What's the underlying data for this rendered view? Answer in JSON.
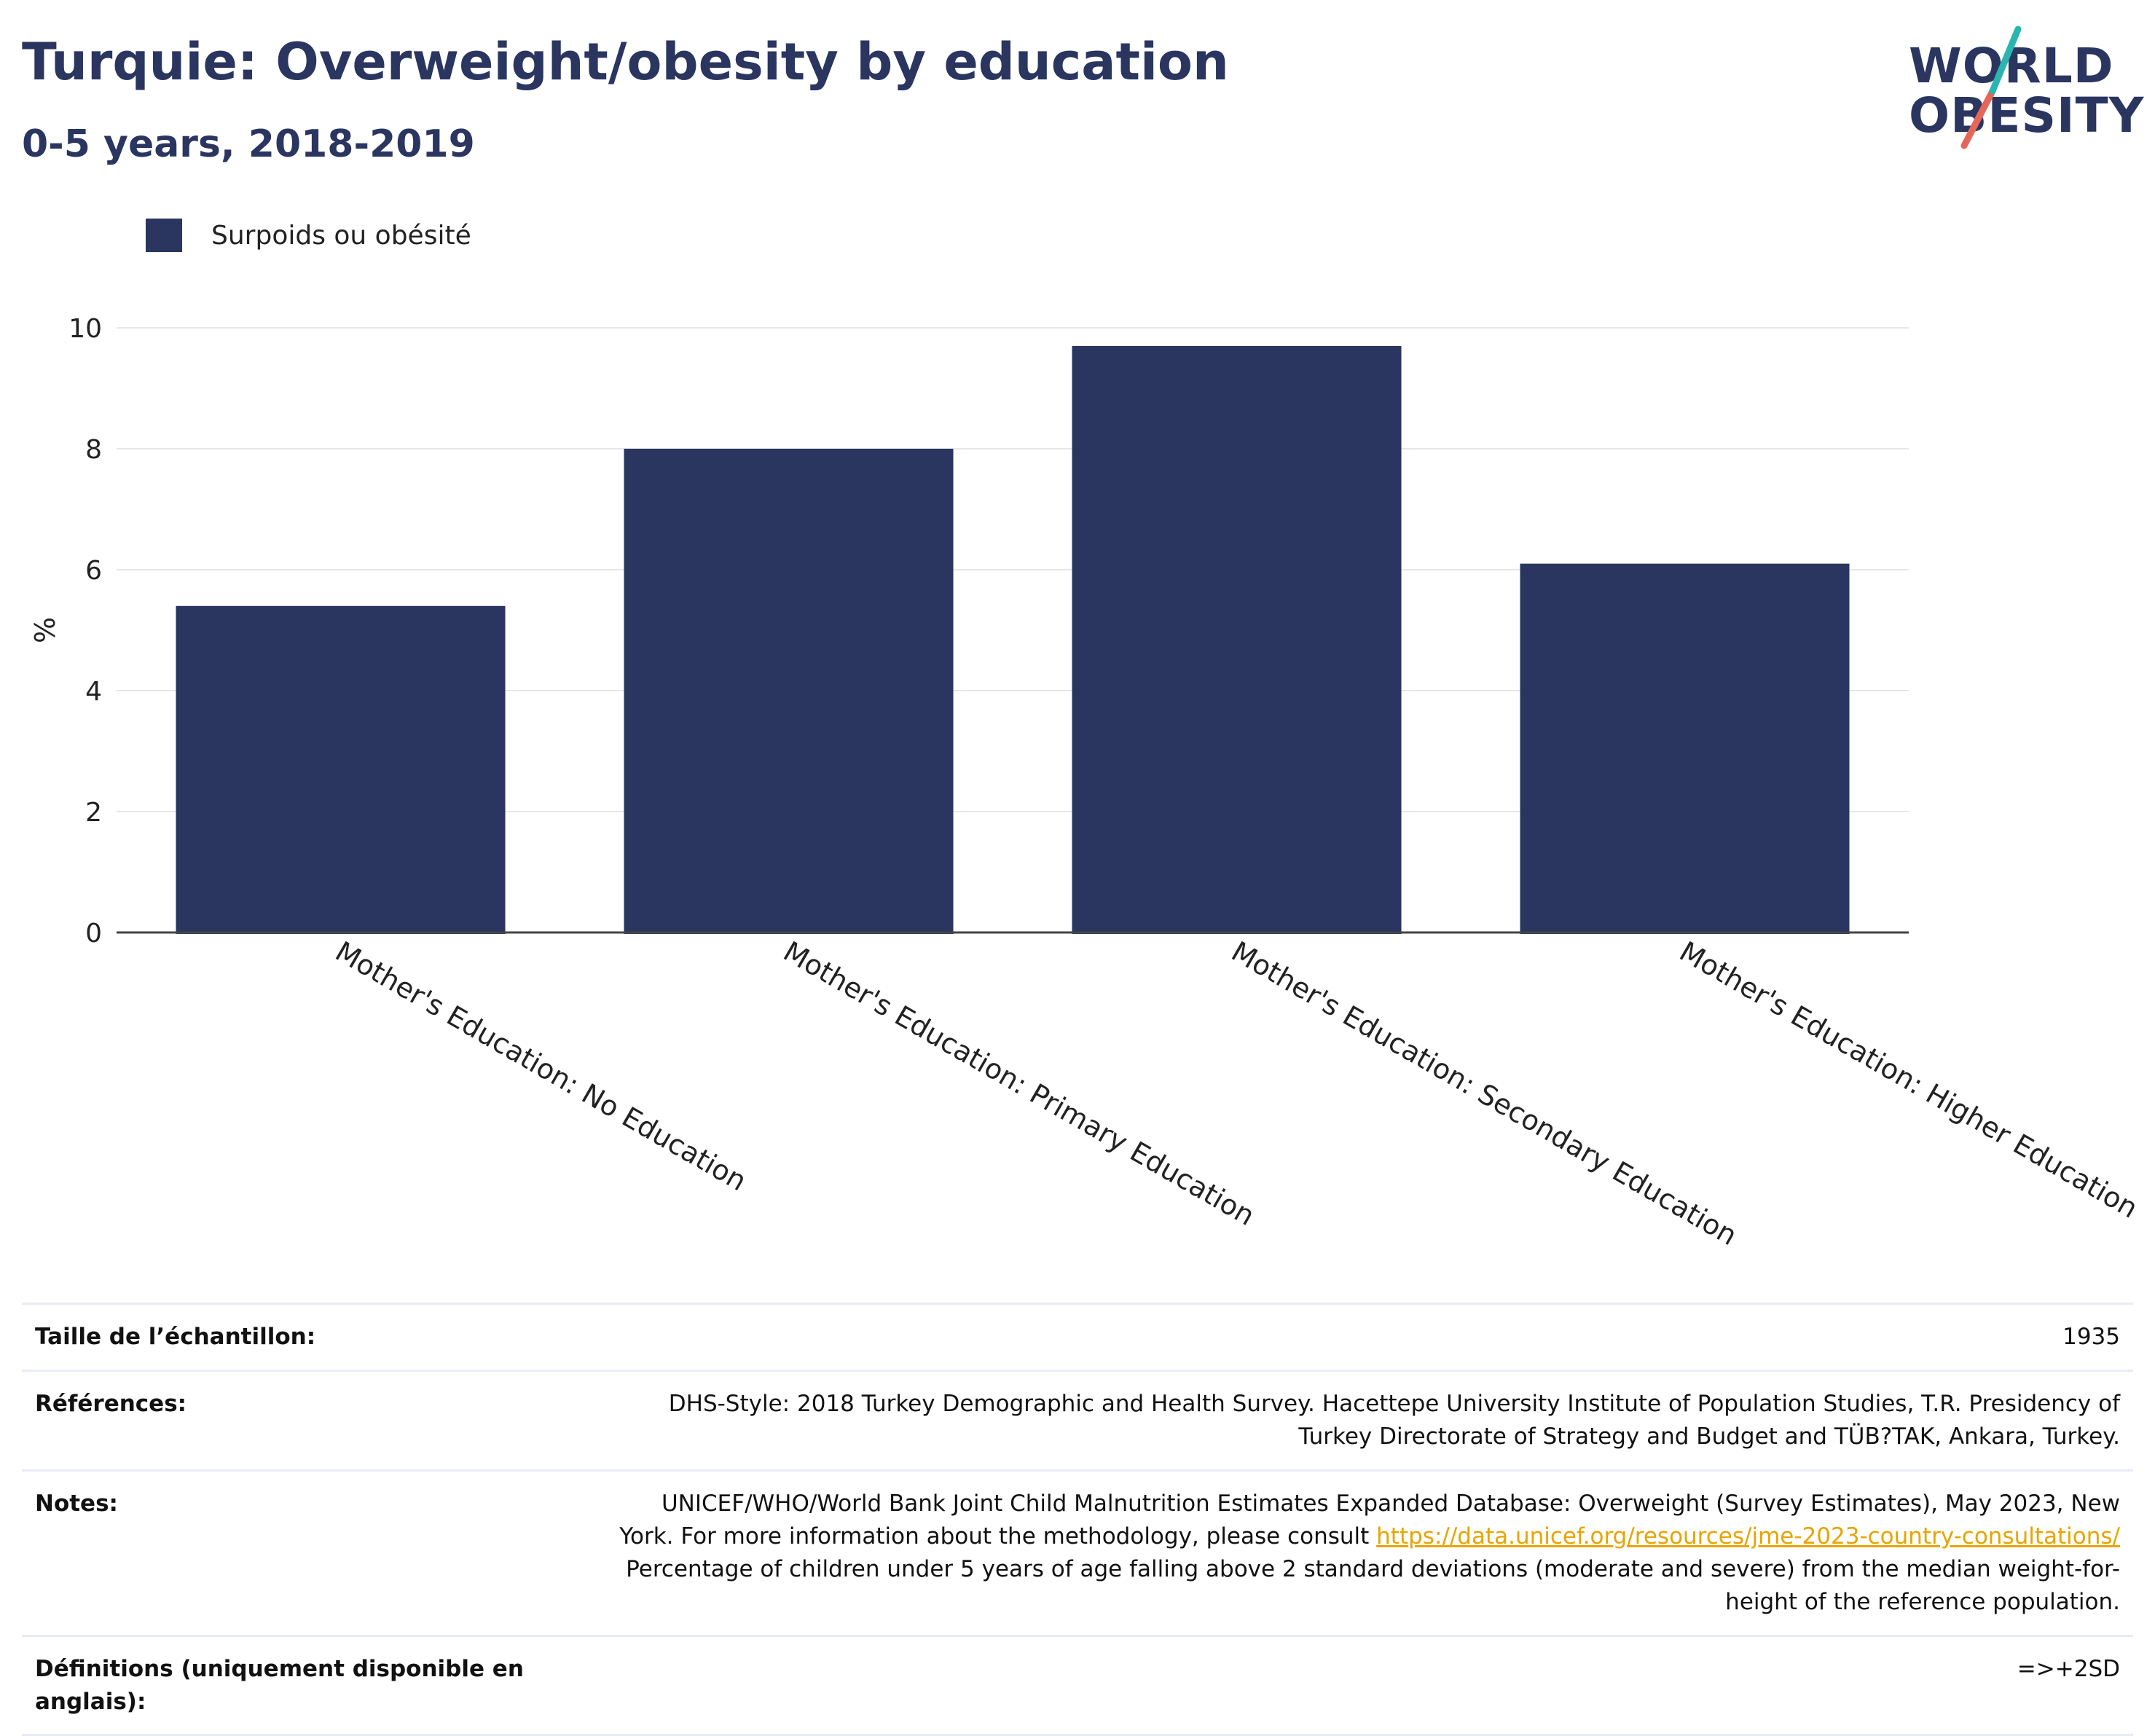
{
  "header": {
    "title": "Turquie: Overweight/obesity by education",
    "subtitle": "0-5 years, 2018-2019",
    "logo_line1": "WORLD",
    "logo_line2": "OBESITY"
  },
  "legend": {
    "label": "Surpoids ou obésité"
  },
  "colors": {
    "bar": "#2a3660",
    "title": "#2a3560",
    "grid": "#e6e6e6",
    "axis": "#444444",
    "link": "#e8a400",
    "logo_teal": "#2bb5b0",
    "logo_coral": "#e4675a"
  },
  "chart_data": {
    "type": "bar",
    "title": "Turquie: Overweight/obesity by education",
    "subtitle": "0-5 years, 2018-2019",
    "xlabel": "",
    "ylabel": "%",
    "ylim": [
      0,
      10
    ],
    "yticks": [
      0,
      2,
      4,
      6,
      8,
      10
    ],
    "grid": true,
    "legend_position": "top-left",
    "categories": [
      "Mother's Education: No Education",
      "Mother's Education: Primary Education",
      "Mother's Education: Secondary Education",
      "Mother's Education: Higher Education"
    ],
    "series": [
      {
        "name": "Surpoids ou obésité",
        "values": [
          5.4,
          8.0,
          9.7,
          6.1
        ]
      }
    ]
  },
  "meta": {
    "sample_label": "Taille de l’échantillon:",
    "sample_value": "1935",
    "references_label": "Références:",
    "references_line1": "DHS-Style: 2018 Turkey Demographic and Health Survey. Hacettepe University Institute of Population Studies, T.R. Presidency of",
    "references_line2": "Turkey Directorate of Strategy and Budget and TÜB?TAK, Ankara, Turkey.",
    "notes_label": "Notes:",
    "notes_line1": "UNICEF/WHO/World Bank Joint Child Malnutrition Estimates Expanded Database: Overweight (Survey Estimates), May 2023, New",
    "notes_line2_prefix": "York. For more information about the methodology, please consult ",
    "notes_link": "https://data.unicef.org/resources/jme-2023-country-consultations/",
    "notes_line3": "Percentage of children under 5 years of age falling above 2 standard deviations (moderate and severe) from the median weight-for-",
    "notes_line4": "height of the reference population.",
    "definitions_label": "Définitions (uniquement disponible en anglais):",
    "definitions_value": "=>+2SD"
  }
}
